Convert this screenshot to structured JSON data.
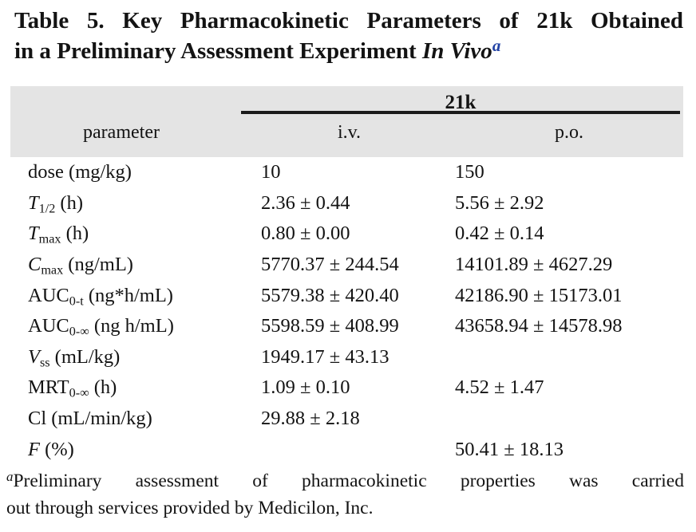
{
  "title": {
    "line1": "Table 5. Key Pharmacokinetic Parameters of 21k Obtained",
    "line2_regular": "in a Preliminary Assessment Experiment ",
    "line2_italic": "In Vivo",
    "footnote_mark": "a"
  },
  "table": {
    "spanner": "21k",
    "columns": [
      "parameter",
      "i.v.",
      "p.o."
    ],
    "rows": [
      {
        "param": [
          {
            "t": "dose (mg/kg)"
          }
        ],
        "iv": "10",
        "po": "150"
      },
      {
        "param": [
          {
            "t": "T",
            "i": true
          },
          {
            "t": "1/2",
            "sub": true
          },
          {
            "t": " (h)"
          }
        ],
        "iv": "2.36 ± 0.44",
        "po": "5.56 ± 2.92"
      },
      {
        "param": [
          {
            "t": "T",
            "i": true
          },
          {
            "t": "max",
            "sub": true
          },
          {
            "t": " (h)"
          }
        ],
        "iv": "0.80 ± 0.00",
        "po": "0.42 ± 0.14"
      },
      {
        "param": [
          {
            "t": "C",
            "i": true
          },
          {
            "t": "max",
            "sub": true
          },
          {
            "t": " (ng/mL)"
          }
        ],
        "iv": "5770.37 ± 244.54",
        "po": "14101.89 ± 4627.29"
      },
      {
        "param": [
          {
            "t": "AUC"
          },
          {
            "t": "0-t",
            "sub": true
          },
          {
            "t": " (ng*h/mL)"
          }
        ],
        "iv": "5579.38 ± 420.40",
        "po": "42186.90 ± 15173.01"
      },
      {
        "param": [
          {
            "t": "AUC"
          },
          {
            "t": "0-∞",
            "sub": true
          },
          {
            "t": " (ng h/mL)"
          }
        ],
        "iv": "5598.59 ± 408.99",
        "po": "43658.94 ± 14578.98"
      },
      {
        "param": [
          {
            "t": "V",
            "i": true
          },
          {
            "t": "ss",
            "sub": true
          },
          {
            "t": " (mL/kg)"
          }
        ],
        "iv": "1949.17 ± 43.13",
        "po": ""
      },
      {
        "param": [
          {
            "t": "MRT"
          },
          {
            "t": "0-∞",
            "sub": true
          },
          {
            "t": " (h)"
          }
        ],
        "iv": "1.09 ± 0.10",
        "po": "4.52 ± 1.47"
      },
      {
        "param": [
          {
            "t": "Cl (mL/min/kg)"
          }
        ],
        "iv": "29.88 ± 2.18",
        "po": ""
      },
      {
        "param": [
          {
            "t": "F",
            "i": true
          },
          {
            "t": " (%)"
          }
        ],
        "iv": "",
        "po": "50.41 ± 18.13"
      }
    ]
  },
  "footnote": {
    "mark": "a",
    "line1": "Preliminary assessment of pharmacokinetic properties was carried",
    "line2": "out through services provided by Medicilon, Inc.",
    "full_text": "Preliminary assessment of pharmacokinetic properties was carried out through services provided by Medicilon, Inc."
  },
  "colors": {
    "header_bg": "#e4e4e4",
    "text": "#131313",
    "rule": "#1b1b1b",
    "footnote_mark_blue": "#2343a5"
  }
}
